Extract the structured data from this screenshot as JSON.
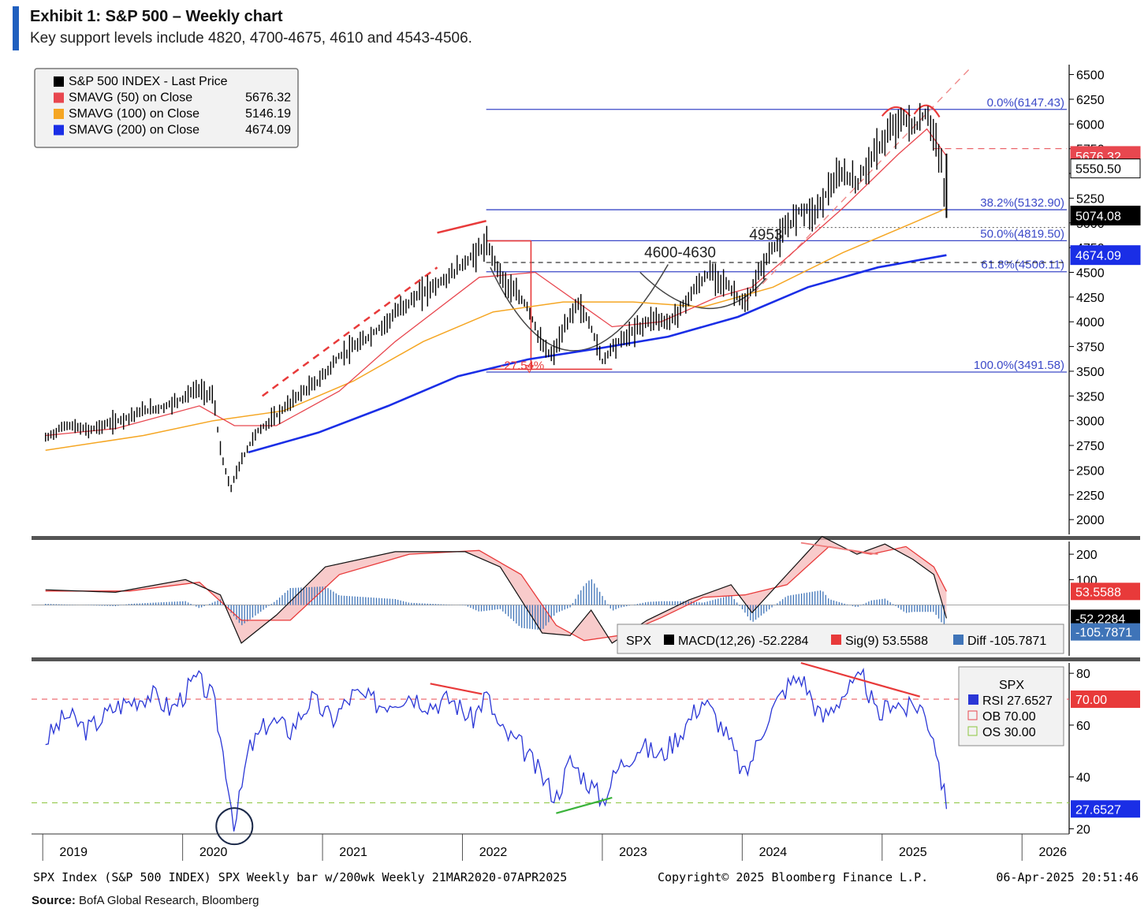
{
  "header": {
    "title": "Exhibit 1: S&P 500 – Weekly chart",
    "subtitle": "Key support levels include 4820, 4700-4675, 4610 and 4543-4506."
  },
  "footer": {
    "left_info": "SPX Index (S&P 500 INDEX) SPX Weekly bar w/200wk  Weekly 21MAR2020-07APR2025",
    "copyright": "Copyright© 2025 Bloomberg Finance L.P.",
    "timestamp": "06-Apr-2025 20:51:46",
    "source_label": "Source:",
    "source_text": "BofA Global Research, Bloomberg"
  },
  "colors": {
    "price": "#000000",
    "sma50": "#e8474f",
    "sma100": "#f5a623",
    "sma200": "#1a2ee6",
    "fib": "#3b49c8",
    "rsi": "#2a36d6",
    "ob": "#e8474f",
    "os": "#8cc63f",
    "macd_sig": "#e83a3a",
    "diff": "#3f74b8"
  },
  "chart_data": [
    {
      "type": "candlestick",
      "title": "S&P 500 INDEX - Weekly",
      "x_ticks": [
        "2019",
        "2020",
        "2021",
        "2022",
        "2023",
        "2024",
        "2025",
        "2026"
      ],
      "y_ticks": [
        "6500",
        "6250",
        "6000",
        "5750",
        "5500",
        "5250",
        "5000",
        "4750",
        "4500",
        "4250",
        "4000",
        "3750",
        "3500",
        "3250",
        "3000",
        "2750",
        "2500",
        "2250",
        "2000"
      ],
      "ylim": [
        1850,
        6600
      ],
      "legend": [
        {
          "swatch": "#000000",
          "label": "S&P 500 INDEX - Last Price",
          "value": ""
        },
        {
          "swatch": "#e8474f",
          "label": "SMAVG (50)  on Close",
          "value": "5676.32"
        },
        {
          "swatch": "#f5a623",
          "label": "SMAVG (100)  on Close",
          "value": "5146.19"
        },
        {
          "swatch": "#1a2ee6",
          "label": "SMAVG (200)  on Close",
          "value": "4674.09"
        }
      ],
      "price_path": [
        [
          2018.8,
          2820
        ],
        [
          2018.95,
          2960
        ],
        [
          2019.1,
          2900
        ],
        [
          2019.3,
          2990
        ],
        [
          2019.5,
          3100
        ],
        [
          2019.65,
          3140
        ],
        [
          2019.78,
          3230
        ],
        [
          2019.88,
          3320
        ],
        [
          2020.0,
          3250
        ],
        [
          2020.05,
          2700
        ],
        [
          2020.12,
          2300
        ],
        [
          2020.2,
          2600
        ],
        [
          2020.3,
          2870
        ],
        [
          2020.45,
          3050
        ],
        [
          2020.6,
          3250
        ],
        [
          2020.75,
          3400
        ],
        [
          2020.9,
          3650
        ],
        [
          2021.05,
          3780
        ],
        [
          2021.2,
          3950
        ],
        [
          2021.35,
          4150
        ],
        [
          2021.5,
          4300
        ],
        [
          2021.65,
          4420
        ],
        [
          2021.8,
          4600
        ],
        [
          2021.95,
          4780
        ],
        [
          2022.0,
          4650
        ],
        [
          2022.08,
          4400
        ],
        [
          2022.15,
          4300
        ],
        [
          2022.25,
          4150
        ],
        [
          2022.35,
          3750
        ],
        [
          2022.42,
          3650
        ],
        [
          2022.5,
          3900
        ],
        [
          2022.6,
          4200
        ],
        [
          2022.7,
          3950
        ],
        [
          2022.78,
          3600
        ],
        [
          2022.85,
          3750
        ],
        [
          2022.95,
          3850
        ],
        [
          2023.05,
          3950
        ],
        [
          2023.15,
          4050
        ],
        [
          2023.25,
          3980
        ],
        [
          2023.35,
          4150
        ],
        [
          2023.45,
          4350
        ],
        [
          2023.55,
          4500
        ],
        [
          2023.65,
          4400
        ],
        [
          2023.75,
          4250
        ],
        [
          2023.8,
          4150
        ],
        [
          2023.9,
          4500
        ],
        [
          2024.0,
          4750
        ],
        [
          2024.1,
          4950
        ],
        [
          2024.2,
          5150
        ],
        [
          2024.3,
          5100
        ],
        [
          2024.4,
          5350
        ],
        [
          2024.5,
          5500
        ],
        [
          2024.6,
          5400
        ],
        [
          2024.7,
          5650
        ],
        [
          2024.8,
          5850
        ],
        [
          2024.88,
          6000
        ],
        [
          2024.95,
          6050
        ],
        [
          2025.02,
          5950
        ],
        [
          2025.08,
          6100
        ],
        [
          2025.12,
          6050
        ],
        [
          2025.16,
          5800
        ],
        [
          2025.2,
          5650
        ],
        [
          2025.24,
          5074
        ]
      ],
      "sma50_path": [
        [
          2018.8,
          2850
        ],
        [
          2019.3,
          2920
        ],
        [
          2019.9,
          3150
        ],
        [
          2020.15,
          2950
        ],
        [
          2020.45,
          2950
        ],
        [
          2020.9,
          3300
        ],
        [
          2021.3,
          3800
        ],
        [
          2021.9,
          4450
        ],
        [
          2022.3,
          4500
        ],
        [
          2022.6,
          4200
        ],
        [
          2022.85,
          3950
        ],
        [
          2023.2,
          4000
        ],
        [
          2023.6,
          4250
        ],
        [
          2023.85,
          4350
        ],
        [
          2024.1,
          4650
        ],
        [
          2024.5,
          5150
        ],
        [
          2024.9,
          5700
        ],
        [
          2025.1,
          5950
        ],
        [
          2025.24,
          5676
        ]
      ],
      "sma100_path": [
        [
          2018.8,
          2700
        ],
        [
          2019.5,
          2850
        ],
        [
          2020.0,
          3000
        ],
        [
          2020.5,
          3100
        ],
        [
          2021.0,
          3400
        ],
        [
          2021.5,
          3800
        ],
        [
          2022.0,
          4100
        ],
        [
          2022.5,
          4200
        ],
        [
          2023.0,
          4200
        ],
        [
          2023.5,
          4150
        ],
        [
          2024.0,
          4350
        ],
        [
          2024.5,
          4700
        ],
        [
          2025.0,
          5000
        ],
        [
          2025.24,
          5146
        ]
      ],
      "sma200_path": [
        [
          2020.25,
          2680
        ],
        [
          2020.75,
          2880
        ],
        [
          2021.25,
          3150
        ],
        [
          2021.75,
          3450
        ],
        [
          2022.25,
          3620
        ],
        [
          2022.75,
          3730
        ],
        [
          2023.25,
          3850
        ],
        [
          2023.75,
          4050
        ],
        [
          2024.25,
          4350
        ],
        [
          2024.75,
          4550
        ],
        [
          2025.24,
          4674
        ]
      ],
      "fib_levels": [
        {
          "label": "0.0%(6147.43)",
          "value": 6147.43
        },
        {
          "label": "38.2%(5132.90)",
          "value": 5132.9
        },
        {
          "label": "50.0%(4819.50)",
          "value": 4819.5
        },
        {
          "label": "61.8%(4506.11)",
          "value": 4506.11
        },
        {
          "label": "100.0%(3491.58)",
          "value": 3491.58
        }
      ],
      "annotations": [
        {
          "text": "4600-4630",
          "x": 2023.08,
          "y": 4650
        },
        {
          "text": "4953",
          "x": 2023.83,
          "y": 4830
        },
        {
          "text": "-27.54%",
          "x": 2022.05,
          "y": 3520
        }
      ],
      "dashed_level": 4600,
      "dotted_level": 4953,
      "red_dashed_level": 5750,
      "channel": [
        [
          2020.35,
          3250
        ],
        [
          2021.6,
          4550
        ],
        [
          2024.6,
          5600
        ],
        [
          2025.4,
          6550
        ]
      ],
      "right_labels": [
        {
          "text": "5676.32",
          "value": 5676.32,
          "bg": "#e8474f",
          "fg": "#ffffff"
        },
        {
          "text": "5550.50",
          "value": 5550.5,
          "bg": "#ffffff",
          "fg": "#000000"
        },
        {
          "text": "5074.08",
          "value": 5074.08,
          "bg": "#000000",
          "fg": "#ffffff"
        },
        {
          "text": "4674.09",
          "value": 4674.09,
          "bg": "#1a2ee6",
          "fg": "#ffffff"
        }
      ]
    },
    {
      "type": "line",
      "title": "MACD",
      "y_ticks": [
        "200",
        "100"
      ],
      "ylim": [
        -200,
        250
      ],
      "legend": {
        "prefix": "SPX",
        "macd": "MACD(12,26) -52.2284",
        "sig": "Sig(9) 53.5588",
        "diff": "Diff -105.7871"
      },
      "macd_path": [
        [
          2018.8,
          60
        ],
        [
          2019.3,
          50
        ],
        [
          2019.8,
          100
        ],
        [
          2020.05,
          40
        ],
        [
          2020.2,
          -150
        ],
        [
          2020.45,
          -40
        ],
        [
          2020.8,
          150
        ],
        [
          2021.3,
          210
        ],
        [
          2021.8,
          210
        ],
        [
          2022.05,
          150
        ],
        [
          2022.35,
          -110
        ],
        [
          2022.55,
          -120
        ],
        [
          2022.7,
          -20
        ],
        [
          2022.85,
          -150
        ],
        [
          2023.1,
          -60
        ],
        [
          2023.4,
          20
        ],
        [
          2023.7,
          80
        ],
        [
          2023.85,
          -30
        ],
        [
          2024.1,
          120
        ],
        [
          2024.35,
          270
        ],
        [
          2024.6,
          200
        ],
        [
          2024.8,
          240
        ],
        [
          2025.0,
          180
        ],
        [
          2025.15,
          120
        ],
        [
          2025.24,
          -52.23
        ]
      ],
      "sig_path": [
        [
          2018.8,
          55
        ],
        [
          2019.4,
          55
        ],
        [
          2019.9,
          90
        ],
        [
          2020.2,
          -60
        ],
        [
          2020.55,
          -60
        ],
        [
          2020.9,
          120
        ],
        [
          2021.4,
          200
        ],
        [
          2021.9,
          215
        ],
        [
          2022.2,
          120
        ],
        [
          2022.45,
          -80
        ],
        [
          2022.65,
          -140
        ],
        [
          2022.9,
          -120
        ],
        [
          2023.2,
          -50
        ],
        [
          2023.5,
          30
        ],
        [
          2023.8,
          40
        ],
        [
          2024.1,
          80
        ],
        [
          2024.4,
          230
        ],
        [
          2024.7,
          200
        ],
        [
          2024.95,
          230
        ],
        [
          2025.15,
          150
        ],
        [
          2025.24,
          53.56
        ]
      ],
      "right_labels": [
        {
          "text": "53.5588",
          "value": 53.5588,
          "bg": "#e83a3a",
          "fg": "#ffffff"
        },
        {
          "text": "-52.2284",
          "value": -52.2284,
          "bg": "#000000",
          "fg": "#ffffff"
        },
        {
          "text": "-105.7871",
          "value": -105.7871,
          "bg": "#3f74b8",
          "fg": "#ffffff"
        }
      ]
    },
    {
      "type": "line",
      "title": "RSI",
      "y_ticks": [
        "80",
        "60",
        "40",
        "20"
      ],
      "ylim": [
        18,
        84
      ],
      "legend": {
        "prefix": "SPX",
        "rsi": "RSI 27.6527",
        "ob": "OB 70.00",
        "os": "OS 30.00"
      },
      "ob_level": 70,
      "os_level": 30,
      "rsi_path": [
        [
          2018.8,
          54
        ],
        [
          2018.95,
          64
        ],
        [
          2019.1,
          58
        ],
        [
          2019.3,
          67
        ],
        [
          2019.55,
          72
        ],
        [
          2019.7,
          66
        ],
        [
          2019.88,
          78
        ],
        [
          2020.0,
          70
        ],
        [
          2020.1,
          40
        ],
        [
          2020.15,
          20
        ],
        [
          2020.25,
          50
        ],
        [
          2020.4,
          62
        ],
        [
          2020.55,
          58
        ],
        [
          2020.7,
          70
        ],
        [
          2020.85,
          62
        ],
        [
          2021.0,
          72
        ],
        [
          2021.2,
          68
        ],
        [
          2021.4,
          72
        ],
        [
          2021.55,
          68
        ],
        [
          2021.7,
          70
        ],
        [
          2021.85,
          62
        ],
        [
          2021.95,
          72
        ],
        [
          2022.05,
          58
        ],
        [
          2022.2,
          52
        ],
        [
          2022.35,
          40
        ],
        [
          2022.45,
          32
        ],
        [
          2022.55,
          46
        ],
        [
          2022.65,
          40
        ],
        [
          2022.78,
          31
        ],
        [
          2022.9,
          44
        ],
        [
          2023.05,
          52
        ],
        [
          2023.2,
          48
        ],
        [
          2023.35,
          58
        ],
        [
          2023.5,
          70
        ],
        [
          2023.65,
          58
        ],
        [
          2023.8,
          40
        ],
        [
          2023.95,
          62
        ],
        [
          2024.1,
          75
        ],
        [
          2024.2,
          79
        ],
        [
          2024.35,
          62
        ],
        [
          2024.5,
          72
        ],
        [
          2024.65,
          78
        ],
        [
          2024.75,
          62
        ],
        [
          2024.85,
          70
        ],
        [
          2024.95,
          66
        ],
        [
          2025.05,
          68
        ],
        [
          2025.15,
          56
        ],
        [
          2025.24,
          27.65
        ]
      ],
      "right_labels": [
        {
          "text": "70.00",
          "value": 70,
          "bg": "#e83a3a",
          "fg": "#ffffff"
        },
        {
          "text": "27.6527",
          "value": 27.6527,
          "bg": "#1a2ee6",
          "fg": "#ffffff"
        }
      ]
    }
  ]
}
